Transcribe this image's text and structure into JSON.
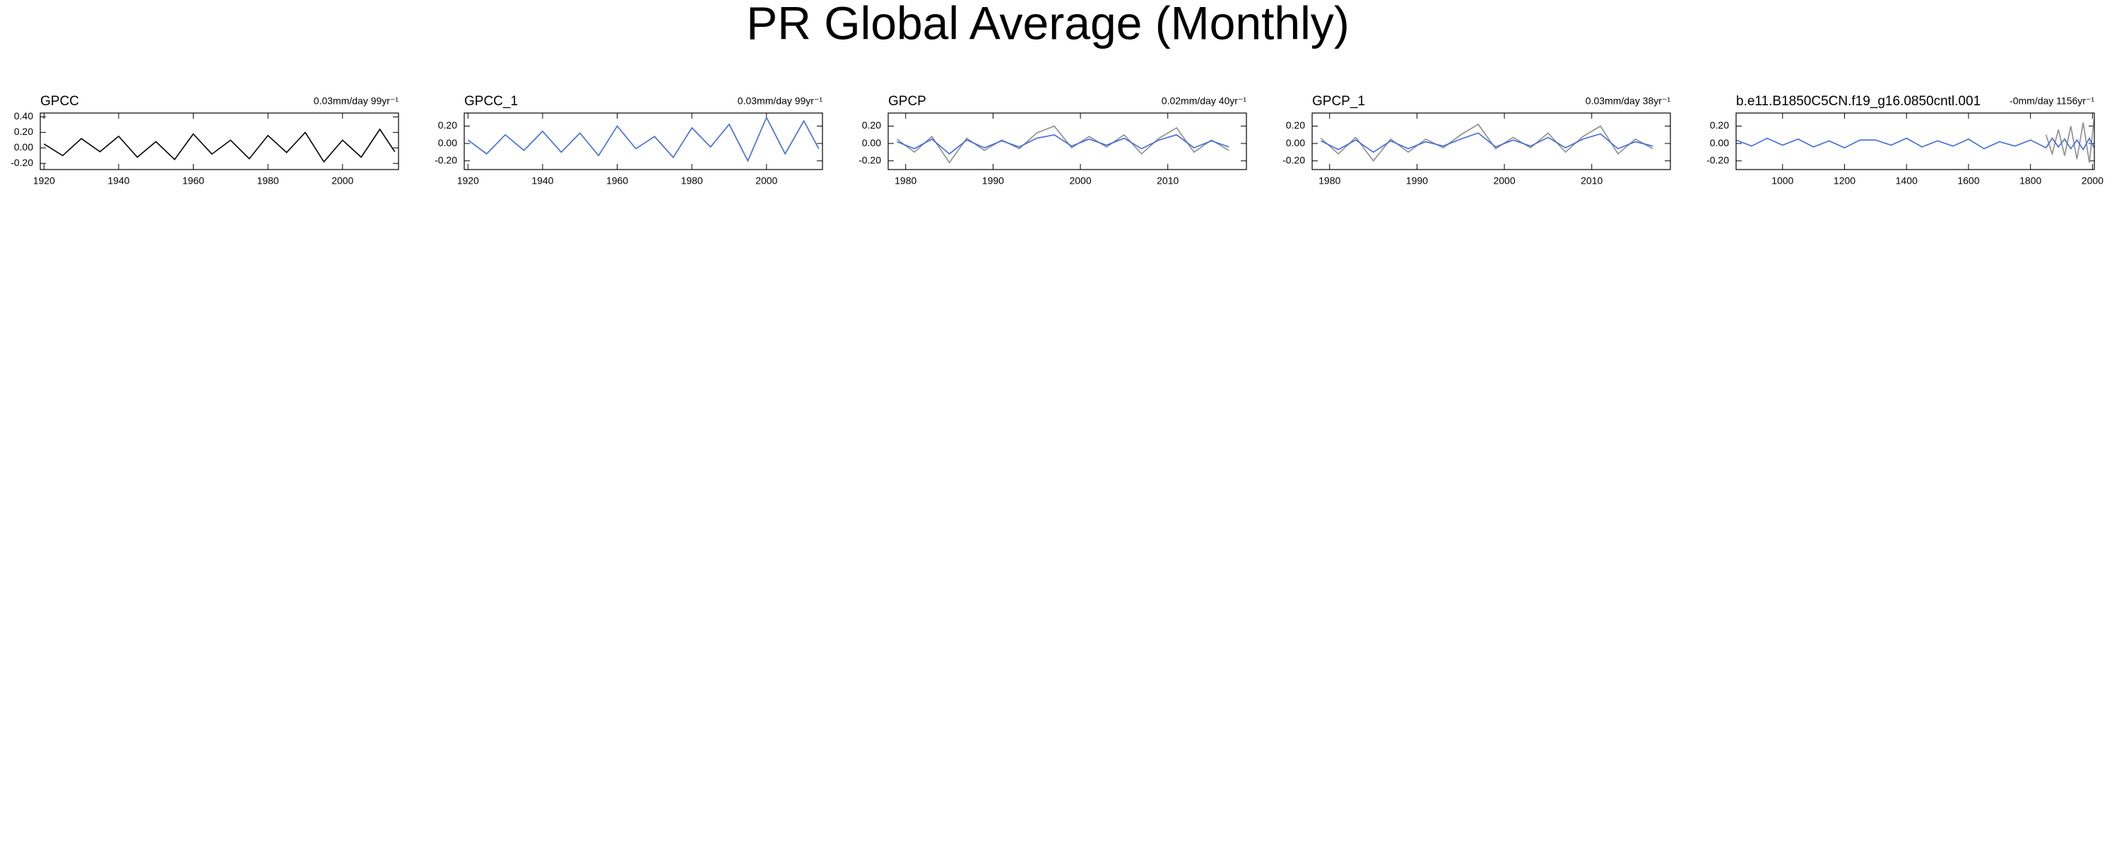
{
  "title": "PR Global Average (Monthly)",
  "chart_data": [
    {
      "type": "line",
      "title": "GPCC",
      "subtitle": "0.03mm/day 99yr⁻¹",
      "xlim": [
        1919,
        2015
      ],
      "ylim": [
        -0.28,
        0.45
      ],
      "xticks": [
        1920,
        1940,
        1960,
        1980,
        2000
      ],
      "yticks": [
        {
          "value": 0.4,
          "label": "0.40"
        },
        {
          "value": 0.2,
          "label": "0.20"
        },
        {
          "value": 0,
          "label": "0.00"
        },
        {
          "value": -0.2,
          "label": "-0.20"
        }
      ],
      "x": [
        1920,
        1925,
        1930,
        1935,
        1940,
        1945,
        1950,
        1955,
        1960,
        1965,
        1970,
        1975,
        1980,
        1985,
        1990,
        1995,
        2000,
        2005,
        2010,
        2014
      ],
      "series": [
        {
          "color": "#000000",
          "values": [
            0.05,
            -0.1,
            0.12,
            -0.05,
            0.15,
            -0.12,
            0.08,
            -0.15,
            0.18,
            -0.08,
            0.1,
            -0.14,
            0.16,
            -0.06,
            0.2,
            -0.18,
            0.1,
            -0.12,
            0.24,
            -0.05
          ]
        }
      ]
    },
    {
      "type": "line",
      "title": "GPCC_1",
      "subtitle": "0.03mm/day 99yr⁻¹",
      "xlim": [
        1919,
        2015
      ],
      "ylim": [
        -0.3,
        0.35
      ],
      "xticks": [
        1920,
        1940,
        1960,
        1980,
        2000
      ],
      "yticks": [
        {
          "value": 0.2,
          "label": "0.20"
        },
        {
          "value": 0,
          "label": "0.00"
        },
        {
          "value": -0.2,
          "label": "-0.20"
        }
      ],
      "x": [
        1920,
        1925,
        1930,
        1935,
        1940,
        1945,
        1950,
        1955,
        1960,
        1965,
        1970,
        1975,
        1980,
        1985,
        1990,
        1995,
        2000,
        2005,
        2010,
        2014
      ],
      "series": [
        {
          "color": "#4169e1",
          "values": [
            0.04,
            -0.12,
            0.1,
            -0.08,
            0.14,
            -0.1,
            0.12,
            -0.14,
            0.2,
            -0.06,
            0.08,
            -0.16,
            0.18,
            -0.04,
            0.22,
            -0.2,
            0.3,
            -0.12,
            0.26,
            -0.06
          ]
        }
      ]
    },
    {
      "type": "line",
      "title": "GPCP",
      "subtitle": "0.02mm/day 40yr⁻¹",
      "xlim": [
        1978,
        2019
      ],
      "ylim": [
        -0.3,
        0.35
      ],
      "xticks": [
        1980,
        1990,
        2000,
        2010
      ],
      "yticks": [
        {
          "value": 0.2,
          "label": "0.20"
        },
        {
          "value": 0,
          "label": "0.00"
        },
        {
          "value": -0.2,
          "label": "-0.20"
        }
      ],
      "x": [
        1979,
        1981,
        1983,
        1985,
        1987,
        1989,
        1991,
        1993,
        1995,
        1997,
        1999,
        2001,
        2003,
        2005,
        2007,
        2009,
        2011,
        2013,
        2015,
        2017
      ],
      "series": [
        {
          "color": "#8c8c8c",
          "values": [
            0.05,
            -0.1,
            0.08,
            -0.22,
            0.06,
            -0.08,
            0.04,
            -0.06,
            0.12,
            0.2,
            -0.05,
            0.08,
            -0.04,
            0.1,
            -0.12,
            0.06,
            0.18,
            -0.1,
            0.04,
            -0.08
          ]
        },
        {
          "color": "#4169e1",
          "values": [
            0.02,
            -0.06,
            0.05,
            -0.12,
            0.04,
            -0.05,
            0.03,
            -0.04,
            0.06,
            0.1,
            -0.03,
            0.05,
            -0.02,
            0.06,
            -0.06,
            0.04,
            0.1,
            -0.05,
            0.03,
            -0.04
          ]
        }
      ]
    },
    {
      "type": "line",
      "title": "GPCP_1",
      "subtitle": "0.03mm/day 38yr⁻¹",
      "xlim": [
        1978,
        2019
      ],
      "ylim": [
        -0.3,
        0.35
      ],
      "xticks": [
        1980,
        1990,
        2000,
        2010
      ],
      "yticks": [
        {
          "value": 0.2,
          "label": "0.20"
        },
        {
          "value": 0,
          "label": "0.00"
        },
        {
          "value": -0.2,
          "label": "-0.20"
        }
      ],
      "x": [
        1979,
        1981,
        1983,
        1985,
        1987,
        1989,
        1991,
        1993,
        1995,
        1997,
        1999,
        2001,
        2003,
        2005,
        2007,
        2009,
        2011,
        2013,
        2015,
        2017
      ],
      "series": [
        {
          "color": "#8c8c8c",
          "values": [
            0.06,
            -0.12,
            0.07,
            -0.2,
            0.05,
            -0.1,
            0.05,
            -0.05,
            0.1,
            0.22,
            -0.06,
            0.07,
            -0.05,
            0.12,
            -0.1,
            0.08,
            0.2,
            -0.12,
            0.05,
            -0.06
          ]
        },
        {
          "color": "#4169e1",
          "values": [
            0.03,
            -0.07,
            0.04,
            -0.1,
            0.03,
            -0.06,
            0.02,
            -0.03,
            0.05,
            0.12,
            -0.04,
            0.04,
            -0.03,
            0.07,
            -0.05,
            0.05,
            0.11,
            -0.06,
            0.02,
            -0.03
          ]
        }
      ]
    },
    {
      "type": "line",
      "title": "b.e11.B1850C5CN.f19_g16.0850cntl.001",
      "subtitle": "-0mm/day 1156yr⁻¹",
      "xlim": [
        850,
        2006
      ],
      "ylim": [
        -0.3,
        0.35
      ],
      "xticks": [
        1000,
        1200,
        1400,
        1600,
        1800,
        2000
      ],
      "yticks": [
        {
          "value": 0.2,
          "label": "0.20"
        },
        {
          "value": 0,
          "label": "0.00"
        },
        {
          "value": -0.2,
          "label": "-0.20"
        }
      ],
      "x": [
        850,
        900,
        950,
        1000,
        1050,
        1100,
        1150,
        1200,
        1250,
        1300,
        1350,
        1400,
        1450,
        1500,
        1550,
        1600,
        1650,
        1700,
        1750,
        1800,
        1850,
        1870,
        1890,
        1910,
        1930,
        1950,
        1970,
        1990,
        2005
      ],
      "series": [
        {
          "color": "#8c8c8c",
          "values": [
            null,
            null,
            null,
            null,
            null,
            null,
            null,
            null,
            null,
            null,
            null,
            null,
            null,
            null,
            null,
            null,
            null,
            null,
            null,
            null,
            0.1,
            -0.12,
            0.16,
            -0.14,
            0.2,
            -0.18,
            0.24,
            -0.22,
            0.28
          ]
        },
        {
          "color": "#4169e1",
          "values": [
            0.04,
            -0.03,
            0.06,
            -0.02,
            0.05,
            -0.04,
            0.03,
            -0.05,
            0.04,
            0.04,
            -0.02,
            0.06,
            -0.04,
            0.03,
            -0.03,
            0.05,
            -0.06,
            0.02,
            -0.03,
            0.04,
            -0.05,
            0.06,
            -0.04,
            0.05,
            -0.06,
            0.04,
            -0.07,
            0.06,
            -0.05
          ]
        }
      ]
    }
  ]
}
